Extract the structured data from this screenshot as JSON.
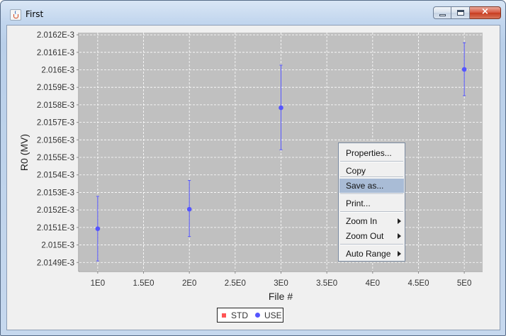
{
  "window": {
    "title": "First",
    "min_label": "minimize",
    "max_label": "maximize",
    "close_glyph": "×"
  },
  "chart_data": {
    "type": "scatter",
    "xlabel": "File #",
    "ylabel": "R0 (MV)",
    "xlim": [
      0.8,
      5.2
    ],
    "ylim": [
      0.0020148525,
      0.0020162125
    ],
    "x_ticks": [
      "1E0",
      "1.5E0",
      "2E0",
      "2.5E0",
      "3E0",
      "3.5E0",
      "4E0",
      "4.5E0",
      "5E0"
    ],
    "y_ticks": [
      "2.0162E-3",
      "2.0161E-3",
      "2.016E-3",
      "2.0159E-3",
      "2.0158E-3",
      "2.0157E-3",
      "2.0156E-3",
      "2.0155E-3",
      "2.0154E-3",
      "2.0153E-3",
      "2.0152E-3",
      "2.0151E-3",
      "2.015E-3",
      "2.0149E-3"
    ],
    "series": [
      {
        "name": "STD",
        "color": "#ff5555",
        "points": []
      },
      {
        "name": "USE",
        "color": "#5555ff",
        "points": [
          {
            "x": 1,
            "y": 0.0020150925,
            "ylow": 0.0020149085,
            "yhigh": 0.0020152775
          },
          {
            "x": 2,
            "y": 0.002015204,
            "ylow": 0.0020150485,
            "yhigh": 0.0020153685
          },
          {
            "x": 3,
            "y": 0.0020157835,
            "ylow": 0.0020155435,
            "yhigh": 0.0020160265
          },
          {
            "x": 5,
            "y": 0.0020160025,
            "ylow": 0.0020158525,
            "yhigh": 0.0020161545
          }
        ]
      }
    ],
    "grid": true,
    "legend_position": "bottom-center",
    "plot_background": "#c0c0c0"
  },
  "legend": {
    "std": "STD",
    "use": "USE"
  },
  "context_menu": {
    "items": [
      "Properties...",
      "Copy",
      "Save as...",
      "Print...",
      "Zoom In",
      "Zoom Out",
      "Auto Range"
    ],
    "selected": "Save as..."
  }
}
